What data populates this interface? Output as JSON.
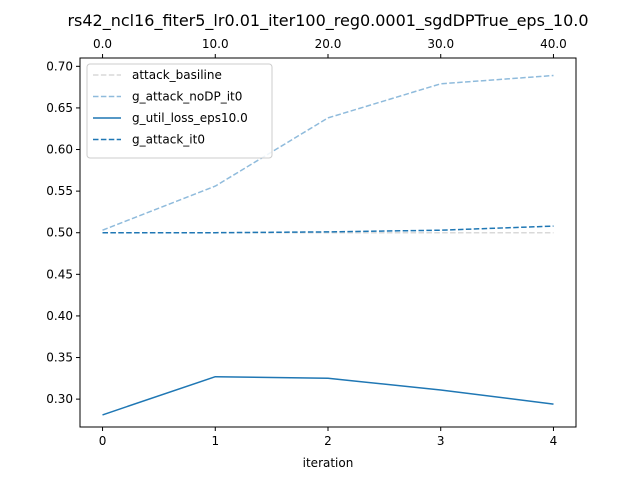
{
  "chart_data": {
    "type": "line",
    "title": "rs42_ncl16_fiter5_lr0.01_iter100_reg0.0001_sgdDPTrue_eps_10.0",
    "xlabel": "iteration",
    "ylabel": "",
    "x": [
      0,
      1,
      2,
      3,
      4
    ],
    "xticks": [
      "0",
      "1",
      "2",
      "3",
      "4"
    ],
    "xlim": [
      -0.2,
      4.2
    ],
    "top_xticks": [
      "0.0",
      "10.0",
      "20.0",
      "30.0",
      "40.0"
    ],
    "ylim": [
      0.2665,
      0.71
    ],
    "yticks": [
      0.3,
      0.35,
      0.4,
      0.45,
      0.5,
      0.55,
      0.6,
      0.65,
      0.7
    ],
    "ytick_labels": [
      "0.30",
      "0.35",
      "0.40",
      "0.45",
      "0.50",
      "0.55",
      "0.60",
      "0.65",
      "0.70"
    ],
    "grid": false,
    "legend_position": "top-left",
    "series": [
      {
        "name": "attack_basiline",
        "values": [
          0.5,
          0.5,
          0.5,
          0.5,
          0.5
        ],
        "color": "#d9d9d9",
        "dashed": true
      },
      {
        "name": "g_attack_noDP_it0",
        "values": [
          0.503,
          0.556,
          0.638,
          0.679,
          0.689
        ],
        "color": "#8fbbdc",
        "dashed": true
      },
      {
        "name": "g_util_loss_eps10.0",
        "values": [
          0.281,
          0.327,
          0.325,
          0.311,
          0.294
        ],
        "color": "#1f77b4",
        "dashed": false
      },
      {
        "name": "g_attack_it0",
        "values": [
          0.5,
          0.5,
          0.501,
          0.503,
          0.508
        ],
        "color": "#1f77b4",
        "dashed": true
      }
    ]
  }
}
